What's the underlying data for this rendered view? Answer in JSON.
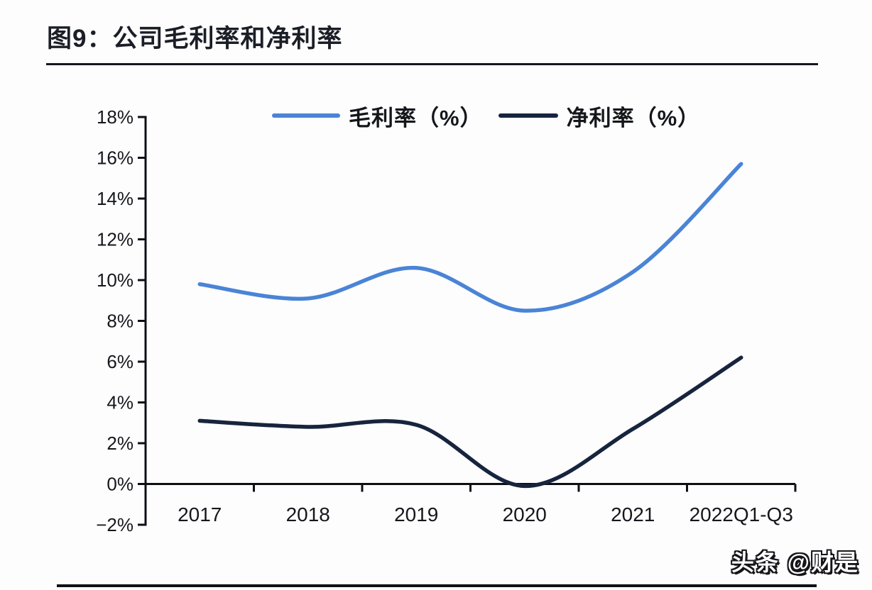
{
  "header": {
    "title": "图9：公司毛利率和净利率"
  },
  "footer": {
    "watermark": "头条 @财是"
  },
  "chart_data": {
    "type": "line",
    "title": "图9：公司毛利率和净利率",
    "categories": [
      "2017",
      "2018",
      "2019",
      "2020",
      "2021",
      "2022Q1-Q3"
    ],
    "series": [
      {
        "name": "毛利率（%）",
        "color": "#4a84d6",
        "values": [
          9.8,
          9.1,
          10.6,
          8.5,
          10.4,
          15.7
        ]
      },
      {
        "name": "净利率（%）",
        "color": "#17243e",
        "values": [
          3.1,
          2.8,
          2.9,
          -0.1,
          2.7,
          6.2
        ]
      }
    ],
    "xlabel": "",
    "ylabel": "",
    "ylim": [
      -2,
      18
    ],
    "ytick_values": [
      18,
      16,
      14,
      12,
      10,
      8,
      6,
      4,
      2,
      0,
      -2
    ],
    "ytick_labels": [
      "18%",
      "16%",
      "14%",
      "12%",
      "10%",
      "8%",
      "6%",
      "4%",
      "2%",
      "0%",
      "−2%"
    ],
    "grid": false,
    "smooth": true,
    "legend_position": "top-center",
    "axis_color": "#0d0f15",
    "label_color": "#16171c"
  }
}
